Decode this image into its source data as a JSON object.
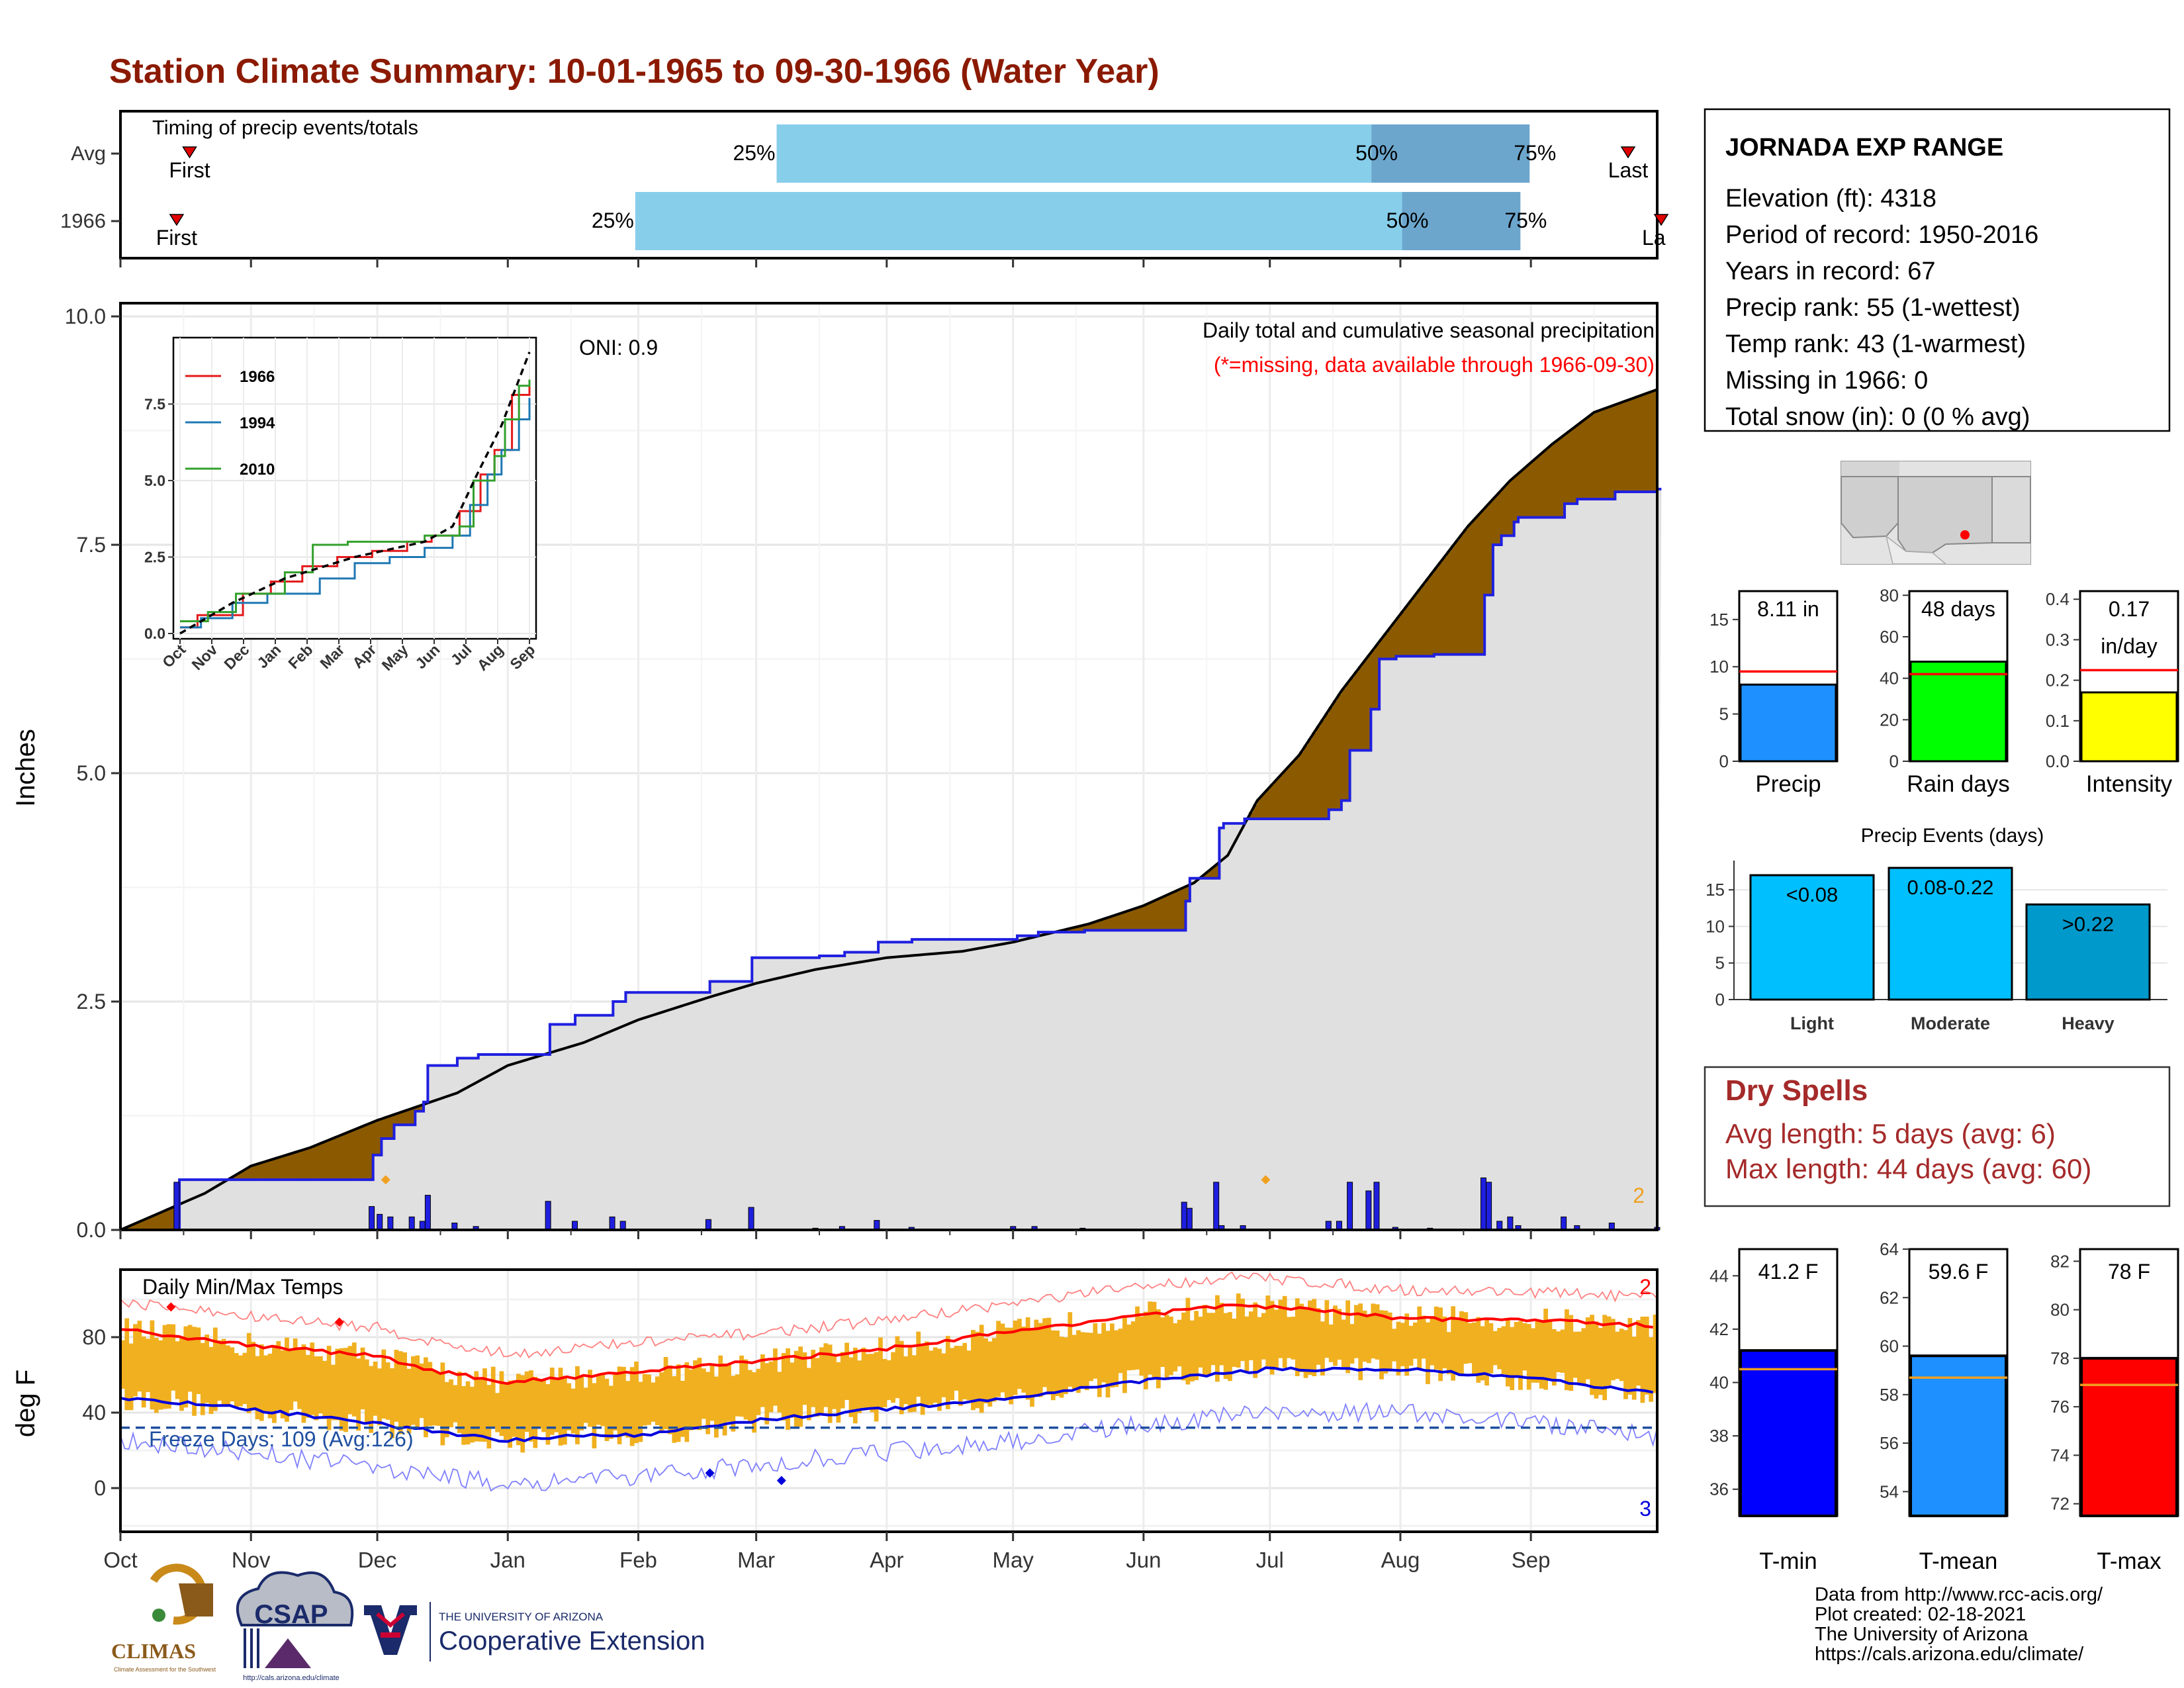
{
  "page": {
    "title": "Station Climate Summary: 10-01-1965 to 09-30-1966 (Water Year)",
    "footer": [
      "Data from http://www.rcc-acis.org/",
      "Plot created: 02-18-2021",
      "The University of Arizona",
      "https://cals.arizona.edu/climate/"
    ],
    "logos": {
      "climas": "CLIMAS",
      "climas_sub": "Climate Assessment for the Southwest",
      "csap": "CSAP",
      "csap_url": "http://cals.arizona.edu/climate",
      "ua_small": "THE UNIVERSITY OF ARIZONA",
      "ua_big": "Cooperative Extension"
    }
  },
  "station": {
    "name": "JORNADA EXP RANGE",
    "lines": [
      "Elevation (ft): 4318",
      "Period of record: 1950-2016",
      "Years in record: 67",
      "Precip rank: 55 (1-wettest)",
      "Temp rank: 43 (1-warmest)",
      "Missing in 1966: 0",
      "Total snow (in): 0 (0 % avg)"
    ]
  },
  "timing": {
    "title": "Timing of precip events/totals",
    "rows": [
      "Avg",
      "1966"
    ],
    "pct_labels": [
      "25%",
      "50%",
      "75%"
    ],
    "first_label": "First",
    "last_label": "Last",
    "last_label_clipped": "La",
    "avg": {
      "first": 0.045,
      "p25": 0.427,
      "p50": 0.814,
      "p75": 0.917,
      "last": 1.0
    },
    "y1966": {
      "first": 0.04,
      "p25": 0.335,
      "p50": 0.834,
      "p75": 0.911,
      "last": 1.0
    }
  },
  "precip": {
    "ylabel": "Inches",
    "yticks": [
      "0.0",
      "2.5",
      "5.0",
      "7.5",
      "10.0"
    ],
    "annotation_title": "Daily total and cumulative seasonal precipitation",
    "annotation_missing": "(*=missing, data available through 1966-09-30)",
    "oni": "ONI: 0.9",
    "count_label": "2",
    "colors": {
      "above": "#8B5A00",
      "below": "#2a8a2a",
      "area": "#e0e0e0",
      "line": "#1f1fe0",
      "bars": "#1f1fe0",
      "marker": "#f0a020"
    }
  },
  "inset": {
    "yticks": [
      "0.0",
      "2.5",
      "5.0",
      "7.5"
    ],
    "months": [
      "Oct",
      "Nov",
      "Dec",
      "Jan",
      "Feb",
      "Mar",
      "Apr",
      "May",
      "Jun",
      "Jul",
      "Aug",
      "Sep"
    ],
    "legend": [
      "1966",
      "1994",
      "2010"
    ],
    "colors": [
      "#e31a1c",
      "#1f78b4",
      "#33a02c"
    ]
  },
  "temps": {
    "title": "Daily Min/Max Temps",
    "ylabel": "deg F",
    "yticks": [
      "0",
      "40",
      "80"
    ],
    "freeze": "Freeze Days: 109 (Avg:126)",
    "count_top": "2",
    "count_bottom": "3",
    "colors": {
      "bars": "#f0b020",
      "max": "#ff0000",
      "min": "#0000dd"
    }
  },
  "months": [
    "Oct",
    "Nov",
    "Dec",
    "Jan",
    "Feb",
    "Mar",
    "Apr",
    "May",
    "Jun",
    "Jul",
    "Aug",
    "Sep"
  ],
  "summary": {
    "precip": {
      "label": "Precip",
      "value_label": "8.11 in",
      "value": 8.11,
      "avg": 9.5,
      "yticks": [
        "0",
        "5",
        "10",
        "15"
      ],
      "ymax": 18,
      "color": "#1e90ff"
    },
    "raindays": {
      "label": "Rain days",
      "value_label": "48 days",
      "value": 48,
      "avg": 42,
      "yticks": [
        "0",
        "20",
        "40",
        "60",
        "80"
      ],
      "ymax": 82,
      "color": "#00ff00"
    },
    "intensity": {
      "label": "Intensity",
      "value_label_1": "0.17",
      "value_label_2": "in/day",
      "value": 0.17,
      "avg": 0.225,
      "yticks": [
        "0.0",
        "0.1",
        "0.2",
        "0.3",
        "0.4"
      ],
      "ymax": 0.42,
      "color": "#ffff00"
    }
  },
  "events": {
    "title": "Precip Events (days)",
    "yticks": [
      "0",
      "5",
      "10",
      "15"
    ],
    "categories": [
      "Light",
      "Moderate",
      "Heavy"
    ],
    "labels": [
      "<0.08",
      "0.08-0.22",
      ">0.22"
    ],
    "values": [
      17,
      18,
      13
    ],
    "colors": [
      "#00bfff",
      "#00bfff",
      "#0099cc"
    ]
  },
  "dry": {
    "title": "Dry Spells",
    "lines": [
      "Avg length: 5 days (avg: 6)",
      "Max length: 44 days (avg: 60)"
    ]
  },
  "tbars": [
    {
      "label": "T-min",
      "value_label": "41.2 F",
      "value": 41.2,
      "avg": 40.5,
      "ymin": 35,
      "ymax": 45,
      "yticks": [
        "36",
        "38",
        "40",
        "42",
        "44"
      ],
      "color": "#0000ff"
    },
    {
      "label": "T-mean",
      "value_label": "59.6 F",
      "value": 59.6,
      "avg": 58.7,
      "ymin": 53,
      "ymax": 64,
      "yticks": [
        "54",
        "56",
        "58",
        "60",
        "62",
        "64"
      ],
      "color": "#1e90ff"
    },
    {
      "label": "T-max",
      "value_label": "78 F",
      "value": 78,
      "avg": 76.9,
      "ymin": 71.5,
      "ymax": 82.5,
      "yticks": [
        "72",
        "74",
        "76",
        "78",
        "80",
        "82"
      ],
      "color": "#ff0000"
    }
  ],
  "chart_data": [
    {
      "type": "area",
      "title": "Daily total and cumulative seasonal precipitation",
      "ylabel": "Inches",
      "ylim": [
        0,
        10
      ],
      "x": [
        "Oct",
        "Nov",
        "Dec",
        "Jan",
        "Feb",
        "Mar",
        "Apr",
        "May",
        "Jun",
        "Jul",
        "Aug",
        "Sep"
      ],
      "series": [
        {
          "name": "1966",
          "values": [
            0.55,
            0.55,
            1.8,
            2.1,
            2.6,
            2.95,
            3.1,
            3.3,
            4.4,
            4.5,
            6.3,
            8.1
          ]
        }
      ]
    },
    {
      "type": "line",
      "title": "Daily Min/Max Temps",
      "ylabel": "deg F",
      "x": [
        "Oct",
        "Nov",
        "Dec",
        "Jan",
        "Feb",
        "Mar",
        "Apr",
        "May",
        "Jun",
        "Jul",
        "Aug",
        "Sep"
      ],
      "series": [
        {
          "values": [
            80,
            70,
            62,
            56,
            62,
            68,
            74,
            84,
            93,
            91,
            87,
            84
          ]
        },
        {
          "values": [
            45,
            38,
            30,
            23,
            26,
            33,
            40,
            48,
            57,
            63,
            60,
            52
          ]
        }
      ]
    }
  ]
}
